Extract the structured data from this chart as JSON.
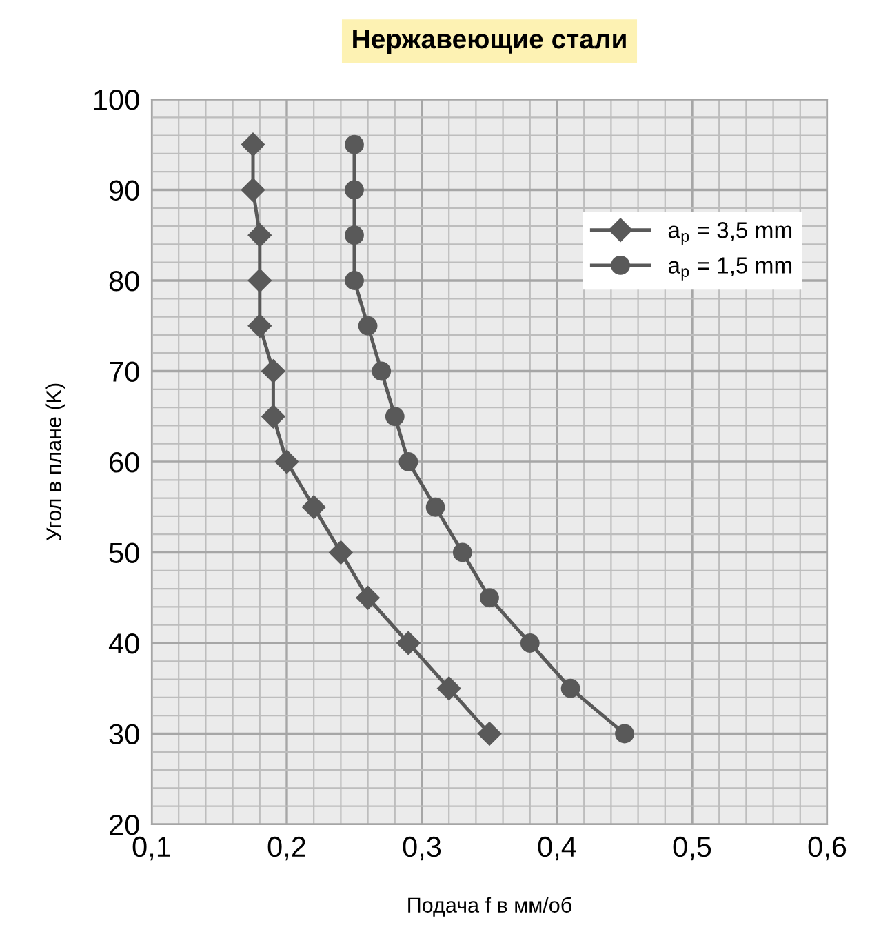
{
  "chart_data": {
    "type": "line",
    "title": "Нержавеющие стали",
    "xlabel": "Подача f в мм/об",
    "ylabel": "Угол в плане (K)",
    "xlim": [
      0.1,
      0.6
    ],
    "ylim": [
      20,
      100
    ],
    "xticks": [
      {
        "value": 0.1,
        "label": "0,1"
      },
      {
        "value": 0.2,
        "label": "0,2"
      },
      {
        "value": 0.3,
        "label": "0,3"
      },
      {
        "value": 0.4,
        "label": "0,4"
      },
      {
        "value": 0.5,
        "label": "0,5"
      },
      {
        "value": 0.6,
        "label": "0,6"
      }
    ],
    "yticks": [
      20,
      30,
      40,
      50,
      60,
      70,
      80,
      90,
      100
    ],
    "grid": true,
    "legend": "top right",
    "line_style": "solid",
    "series": [
      {
        "name": "a$_{p}$ = 3,5 mm",
        "color": "#595959",
        "marker": "diamond",
        "x": [
          0.175,
          0.175,
          0.18,
          0.18,
          0.18,
          0.19,
          0.19,
          0.2,
          0.22,
          0.24,
          0.26,
          0.29,
          0.32,
          0.35
        ],
        "values": [
          95,
          90,
          85,
          80,
          75,
          70,
          65,
          60,
          55,
          50,
          45,
          40,
          35,
          30
        ]
      },
      {
        "name": "a$_{p}$ = 1,5 mm",
        "color": "#595959",
        "marker": "circle",
        "x": [
          0.25,
          0.25,
          0.25,
          0.25,
          0.26,
          0.27,
          0.28,
          0.29,
          0.31,
          0.33,
          0.35,
          0.38,
          0.41,
          0.45
        ],
        "values": [
          95,
          90,
          85,
          80,
          75,
          70,
          65,
          60,
          55,
          50,
          45,
          40,
          35,
          30
        ]
      }
    ]
  }
}
